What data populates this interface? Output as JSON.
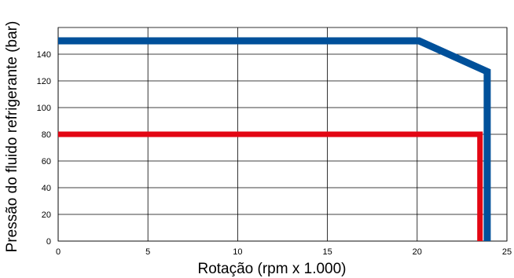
{
  "chart_data": {
    "type": "line",
    "title": "",
    "xlabel": "Rotação (rpm x 1.000)",
    "ylabel": "Pressão do fluido refrigerante (bar)",
    "xlim": [
      0,
      25
    ],
    "ylim": [
      0,
      150
    ],
    "xticks": [
      0,
      5,
      10,
      15,
      20,
      25
    ],
    "yticks": [
      0,
      20,
      40,
      60,
      80,
      100,
      120,
      140
    ],
    "grid": true,
    "legend": "none",
    "series": [
      {
        "color": "#00509a",
        "points": [
          [
            0,
            150
          ],
          [
            20.1,
            150
          ],
          [
            23.9,
            127
          ],
          [
            23.9,
            0
          ]
        ]
      },
      {
        "color": "#e30613",
        "points": [
          [
            0,
            80
          ],
          [
            23.5,
            80
          ],
          [
            23.5,
            0
          ]
        ]
      }
    ]
  }
}
